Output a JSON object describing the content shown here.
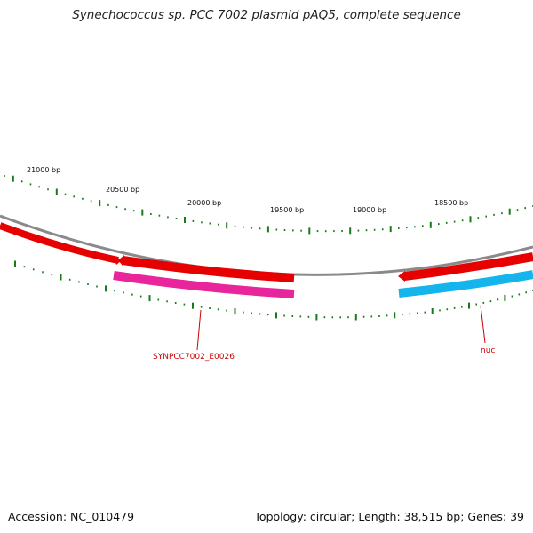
{
  "title": "Synechococcus sp. PCC 7002 plasmid pAQ5, complete sequence",
  "footer": {
    "accession": "Accession: NC_010479",
    "summary": "Topology: circular; Length: 38,515 bp; Genes: 39"
  },
  "colors": {
    "backbone": "#8a8a8a",
    "forward_cds": "#e60000",
    "reverse_cds_pink": "#e8259a",
    "reverse_cds_blue": "#14b4ec",
    "ticks": "#1a7a1a",
    "gene_label": "#cc0000"
  },
  "scale_labels": [
    "21000 bp",
    "20500 bp",
    "20000 bp",
    "19500 bp",
    "19000 bp",
    "18500 bp"
  ],
  "gene_labels": [
    "SYNPCC7002_E0026",
    "nuc"
  ]
}
